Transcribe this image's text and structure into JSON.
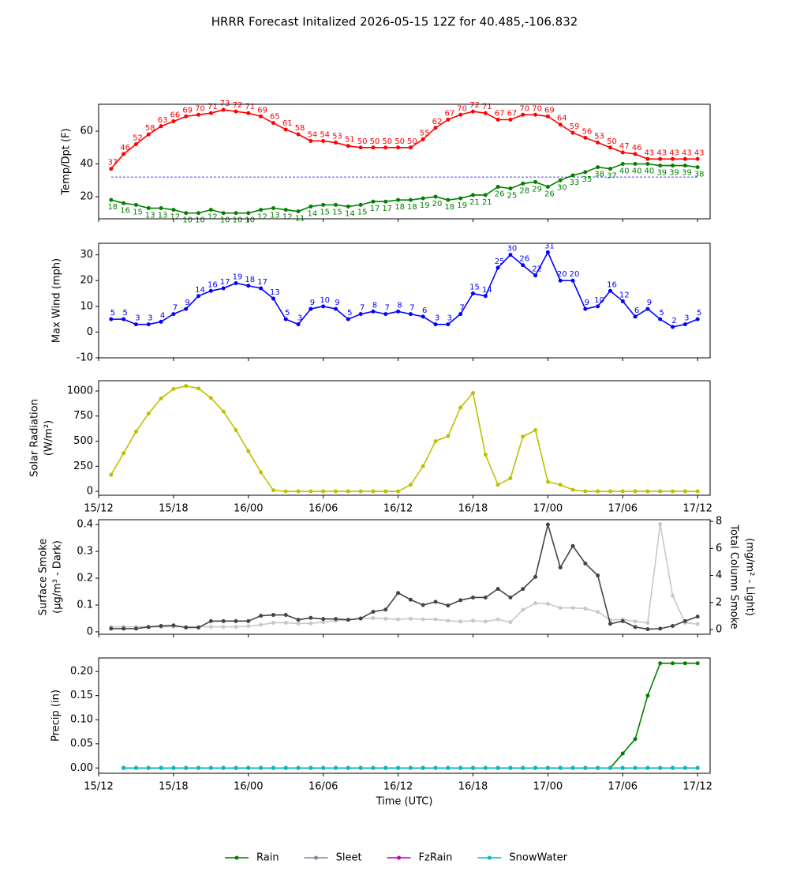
{
  "title": "HRRR Forecast Initalized 2026-05-15 12Z for 40.485,-106.832",
  "chart_data": [
    {
      "type": "line",
      "ylabel": [
        "Temp/Dpt (F)"
      ],
      "x": [
        1,
        2,
        3,
        4,
        5,
        6,
        7,
        8,
        9,
        10,
        11,
        12,
        13,
        14,
        15,
        16,
        17,
        18,
        19,
        20,
        21,
        22,
        23,
        24,
        25,
        26,
        27,
        28,
        29,
        30,
        31,
        32,
        33,
        34,
        35,
        36,
        37,
        38,
        39,
        40,
        41,
        42,
        43,
        44,
        45,
        46,
        47,
        48
      ],
      "xlim": [
        0,
        49
      ],
      "xticks": [
        0,
        6,
        12,
        18,
        24,
        30,
        36,
        42,
        48
      ],
      "ylim": [
        6.5,
        76.4
      ],
      "yticks": [
        20,
        40,
        60
      ],
      "hlines": [
        {
          "value": 32,
          "color": "#0000ff"
        }
      ],
      "series": [
        {
          "color": "#ff0000",
          "show_values": true,
          "label_pos": "above",
          "values": [
            37,
            46,
            52,
            58,
            63,
            66,
            69,
            70,
            71,
            73,
            72,
            71,
            69,
            65,
            61,
            58,
            54,
            54,
            53,
            51,
            50,
            50,
            50,
            50,
            50,
            55,
            62,
            67,
            70,
            72,
            71,
            67,
            67,
            70,
            70,
            69,
            64,
            59,
            56,
            53,
            50,
            47,
            46,
            43,
            43,
            43,
            43,
            43
          ]
        },
        {
          "color": "#008000",
          "show_values": true,
          "label_pos": "below",
          "values": [
            18,
            16,
            15,
            13,
            13,
            12,
            10,
            10,
            12,
            10,
            10,
            10,
            12,
            13,
            12,
            11,
            14,
            15,
            15,
            14,
            15,
            17,
            17,
            18,
            18,
            19,
            20,
            18,
            19,
            21,
            21,
            26,
            25,
            28,
            29,
            26,
            30,
            33,
            35,
            38,
            37,
            40,
            40,
            40,
            39,
            39,
            39,
            38
          ]
        }
      ]
    },
    {
      "type": "line",
      "ylabel": [
        "Max Wind (mph)"
      ],
      "x": [
        1,
        2,
        3,
        4,
        5,
        6,
        7,
        8,
        9,
        10,
        11,
        12,
        13,
        14,
        15,
        16,
        17,
        18,
        19,
        20,
        21,
        22,
        23,
        24,
        25,
        26,
        27,
        28,
        29,
        30,
        31,
        32,
        33,
        34,
        35,
        36,
        37,
        38,
        39,
        40,
        41,
        42,
        43,
        44,
        45,
        46,
        47,
        48
      ],
      "xlim": [
        0,
        49
      ],
      "xticks": [
        0,
        6,
        12,
        18,
        24,
        30,
        36,
        42,
        48
      ],
      "ylim": [
        -10,
        34.5
      ],
      "yticks": [
        -10,
        0,
        10,
        20,
        30
      ],
      "series": [
        {
          "color": "#0000ff",
          "show_values": true,
          "label_pos": "above",
          "values": [
            5,
            5,
            3,
            3,
            4,
            7,
            9,
            14,
            16,
            17,
            19,
            18,
            17,
            13,
            5,
            3,
            9,
            10,
            9,
            5,
            7,
            8,
            7,
            8,
            7,
            6,
            3,
            3,
            7,
            15,
            14,
            25,
            30,
            26,
            22,
            31,
            20,
            20,
            9,
            10,
            16,
            12,
            6,
            9,
            5,
            2,
            3,
            5
          ]
        }
      ]
    },
    {
      "type": "line",
      "ylabel": [
        "Solar Radiation",
        "(W/m²)"
      ],
      "x": [
        1,
        2,
        3,
        4,
        5,
        6,
        7,
        8,
        9,
        10,
        11,
        12,
        13,
        14,
        15,
        16,
        17,
        18,
        19,
        20,
        21,
        22,
        23,
        24,
        25,
        26,
        27,
        28,
        29,
        30,
        31,
        32,
        33,
        34,
        35,
        36,
        37,
        38,
        39,
        40,
        41,
        42,
        43,
        44,
        45,
        46,
        47,
        48
      ],
      "xlim": [
        0,
        49
      ],
      "xticks": [
        {
          "value": 0,
          "label": "15/12"
        },
        {
          "value": 6,
          "label": "15/18"
        },
        {
          "value": 12,
          "label": "16/00"
        },
        {
          "value": 18,
          "label": "16/06"
        },
        {
          "value": 24,
          "label": "16/12"
        },
        {
          "value": 30,
          "label": "16/18"
        },
        {
          "value": 36,
          "label": "17/00"
        },
        {
          "value": 42,
          "label": "17/06"
        },
        {
          "value": 48,
          "label": "17/12"
        }
      ],
      "ylim": [
        -39,
        1102
      ],
      "yticks": [
        0,
        250,
        500,
        750,
        1000
      ],
      "series": [
        {
          "color": "#bfbf00",
          "values": [
            165,
            380,
            595,
            775,
            925,
            1020,
            1050,
            1025,
            930,
            795,
            610,
            400,
            190,
            10,
            0,
            0,
            0,
            0,
            0,
            0,
            0,
            0,
            0,
            0,
            65,
            250,
            500,
            550,
            835,
            980,
            365,
            65,
            130,
            545,
            610,
            95,
            65,
            15,
            0,
            0,
            0,
            0,
            0,
            0,
            0,
            0,
            0,
            0
          ]
        }
      ]
    },
    {
      "type": "line",
      "ylabel": [
        "Surface Smoke",
        "(μg/m³ - Dark)"
      ],
      "y2label": [
        "Total Column Smoke",
        "(mg/m² - Light)"
      ],
      "x": [
        1,
        2,
        3,
        4,
        5,
        6,
        7,
        8,
        9,
        10,
        11,
        12,
        13,
        14,
        15,
        16,
        17,
        18,
        19,
        20,
        21,
        22,
        23,
        24,
        25,
        26,
        27,
        28,
        29,
        30,
        31,
        32,
        33,
        34,
        35,
        36,
        37,
        38,
        39,
        40,
        41,
        42,
        43,
        44,
        45,
        46,
        47,
        48
      ],
      "xlim": [
        0,
        49
      ],
      "xticks": [
        0,
        6,
        12,
        18,
        24,
        30,
        36,
        42,
        48
      ],
      "ylim": [
        -0.009,
        0.418
      ],
      "yticks": [
        0.0,
        0.1,
        0.2,
        0.3,
        0.4
      ],
      "y2lim": [
        -0.35,
        8.12
      ],
      "y2ticks": [
        0,
        2,
        4,
        6,
        8
      ],
      "series": [
        {
          "color": "#c8c8c8",
          "axis": "y2",
          "values": [
            0.2,
            0.2,
            0.2,
            0.2,
            0.2,
            0.2,
            0.2,
            0.2,
            0.2,
            0.2,
            0.2,
            0.25,
            0.35,
            0.5,
            0.5,
            0.45,
            0.45,
            0.55,
            0.65,
            0.7,
            0.8,
            0.85,
            0.8,
            0.75,
            0.8,
            0.75,
            0.75,
            0.65,
            0.6,
            0.65,
            0.6,
            0.75,
            0.55,
            1.45,
            1.95,
            1.9,
            1.6,
            1.6,
            1.55,
            1.3,
            0.7,
            0.75,
            0.6,
            0.5,
            7.8,
            2.5,
            0.5,
            0.4
          ]
        },
        {
          "color": "#444444",
          "values": [
            0.012,
            0.012,
            0.012,
            0.018,
            0.022,
            0.024,
            0.016,
            0.016,
            0.04,
            0.04,
            0.04,
            0.04,
            0.06,
            0.063,
            0.063,
            0.045,
            0.052,
            0.048,
            0.048,
            0.045,
            0.05,
            0.075,
            0.083,
            0.145,
            0.12,
            0.1,
            0.112,
            0.098,
            0.118,
            0.128,
            0.128,
            0.16,
            0.128,
            0.16,
            0.205,
            0.4,
            0.24,
            0.32,
            0.255,
            0.21,
            0.03,
            0.04,
            0.018,
            0.01,
            0.012,
            0.022,
            0.04,
            0.057
          ]
        }
      ]
    },
    {
      "type": "line",
      "ylabel": [
        "Precip (in)"
      ],
      "xlabel": "Time (UTC)",
      "legend": "bottom",
      "x": [
        1,
        2,
        3,
        4,
        5,
        6,
        7,
        8,
        9,
        10,
        11,
        12,
        13,
        14,
        15,
        16,
        17,
        18,
        19,
        20,
        21,
        22,
        23,
        24,
        25,
        26,
        27,
        28,
        29,
        30,
        31,
        32,
        33,
        34,
        35,
        36,
        37,
        38,
        39,
        40,
        41,
        42,
        43,
        44,
        45,
        46,
        47,
        48
      ],
      "xlim": [
        0,
        49
      ],
      "xticks": [
        {
          "value": 0,
          "label": "15/12"
        },
        {
          "value": 6,
          "label": "15/18"
        },
        {
          "value": 12,
          "label": "16/00"
        },
        {
          "value": 18,
          "label": "16/06"
        },
        {
          "value": 24,
          "label": "16/12"
        },
        {
          "value": 30,
          "label": "16/18"
        },
        {
          "value": 36,
          "label": "17/00"
        },
        {
          "value": 42,
          "label": "17/06"
        },
        {
          "value": 48,
          "label": "17/12"
        }
      ],
      "ylim": [
        -0.011,
        0.228
      ],
      "yticks": [
        {
          "value": 0,
          "label": "0.00"
        },
        {
          "value": 0.05,
          "label": "0.05"
        },
        {
          "value": 0.1,
          "label": "0.10"
        },
        {
          "value": 0.15,
          "label": "0.15"
        },
        {
          "value": 0.2,
          "label": "0.20"
        }
      ],
      "series": [
        {
          "name": "Rain",
          "color": "#008000",
          "values": [
            null,
            0,
            0,
            0,
            0,
            0,
            0,
            0,
            0,
            0,
            0,
            0,
            0,
            0,
            0,
            0,
            0,
            0,
            0,
            0,
            0,
            0,
            0,
            0,
            0,
            0,
            0,
            0,
            0,
            0,
            0,
            0,
            0,
            0,
            0,
            0,
            0,
            0,
            0,
            0,
            0,
            0.03,
            0.06,
            0.15,
            0.217,
            0.217,
            0.217,
            0.217
          ]
        },
        {
          "name": "Sleet",
          "color": "#8c7fa6",
          "values": [
            null,
            0,
            0,
            0,
            0,
            0,
            0,
            0,
            0,
            0,
            0,
            0,
            0,
            0,
            0,
            0,
            0,
            0,
            0,
            0,
            0,
            0,
            0,
            0,
            0,
            0,
            0,
            0,
            0,
            0,
            0,
            0,
            0,
            0,
            0,
            0,
            0,
            0,
            0,
            0,
            0,
            0,
            0,
            0,
            0,
            0,
            0,
            0
          ]
        },
        {
          "name": "FzRain",
          "color": "#bf00bf",
          "values": [
            null,
            0,
            0,
            0,
            0,
            0,
            0,
            0,
            0,
            0,
            0,
            0,
            0,
            0,
            0,
            0,
            0,
            0,
            0,
            0,
            0,
            0,
            0,
            0,
            0,
            0,
            0,
            0,
            0,
            0,
            0,
            0,
            0,
            0,
            0,
            0,
            0,
            0,
            0,
            0,
            0,
            0,
            0,
            0,
            0,
            0,
            0,
            0
          ]
        },
        {
          "name": "SnowWater",
          "color": "#00bfbf",
          "values": [
            null,
            0,
            0,
            0,
            0,
            0,
            0,
            0,
            0,
            0,
            0,
            0,
            0,
            0,
            0,
            0,
            0,
            0,
            0,
            0,
            0,
            0,
            0,
            0,
            0,
            0,
            0,
            0,
            0,
            0,
            0,
            0,
            0,
            0,
            0,
            0,
            0,
            0,
            0,
            0,
            0,
            0,
            0,
            0,
            0,
            0,
            0,
            0
          ]
        }
      ]
    }
  ]
}
